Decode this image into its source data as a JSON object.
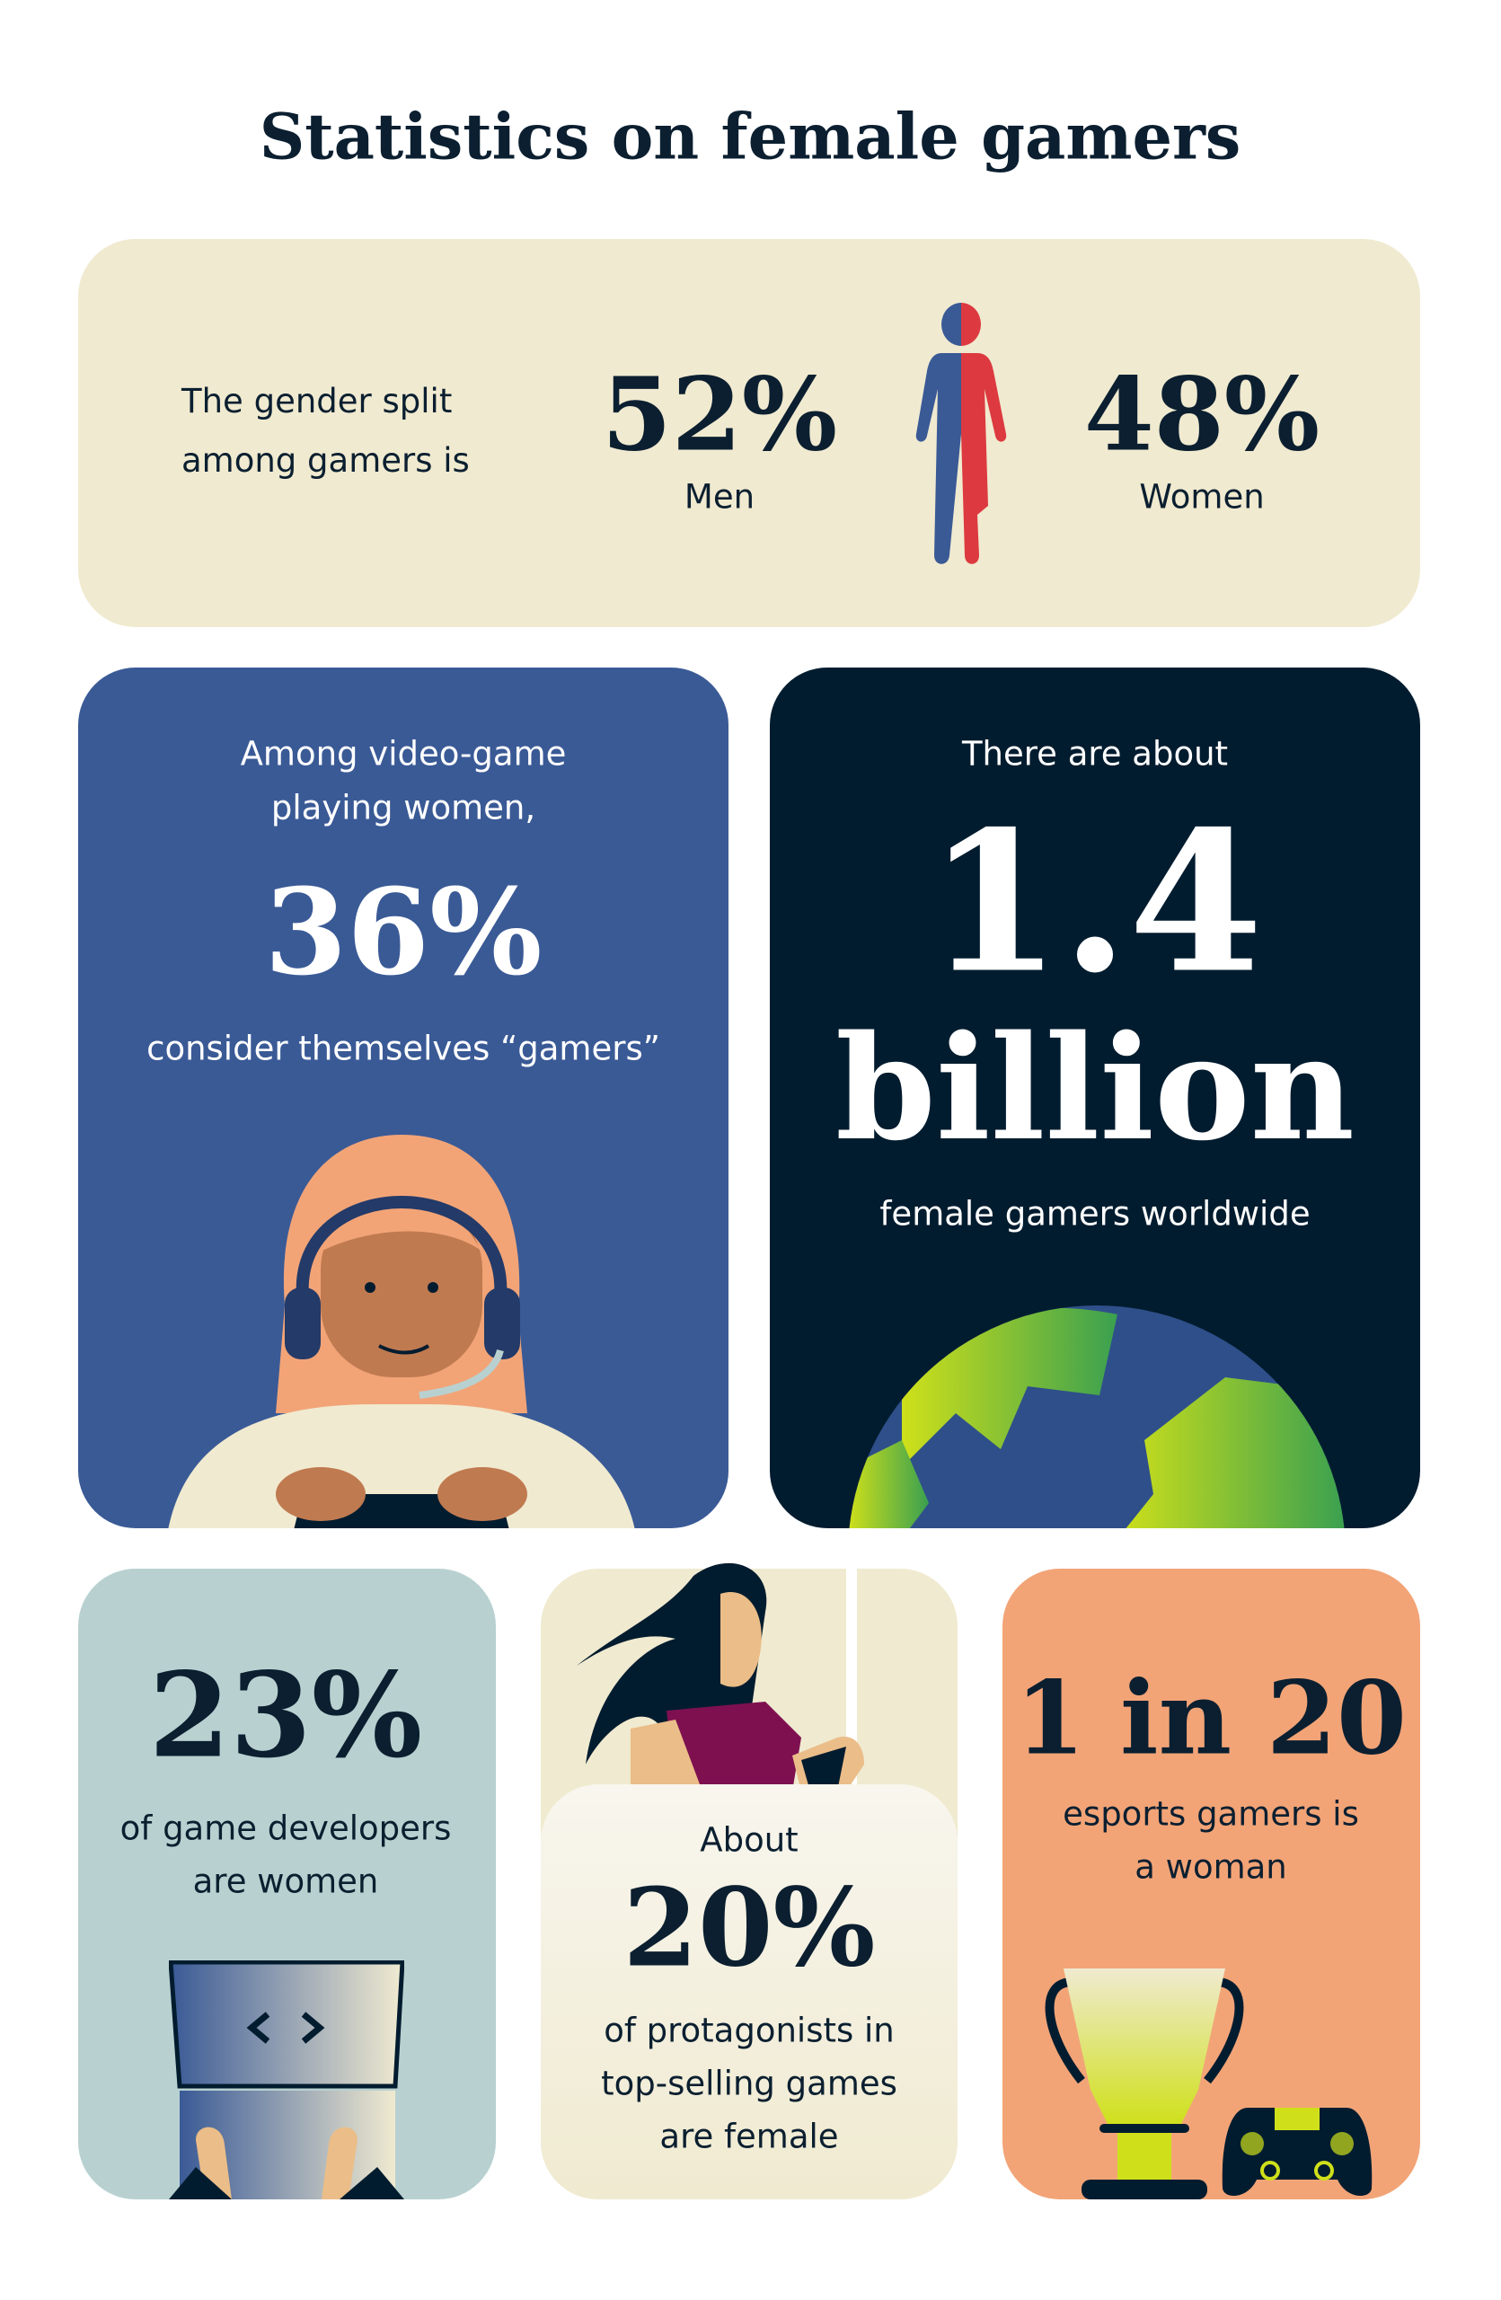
{
  "title": "Statistics on female gamers",
  "colors": {
    "beige": "#f0ead0",
    "blue": "#3a5a96",
    "navy": "#021c2f",
    "teal": "#b8d1d0",
    "orange": "#f2a477",
    "cream": "#f7f4e8",
    "men": "#3a5a96",
    "women": "#dc3a40",
    "lime": "#cfe01a"
  },
  "gender": {
    "intro_line1": "The gender split",
    "intro_line2": "among gamers is",
    "men_value": "52%",
    "men_label": "Men",
    "women_value": "48%",
    "women_label": "Women",
    "icon": "person-split-icon"
  },
  "self_id": {
    "line1": "Among video-game",
    "line2": "playing women,",
    "value": "36%",
    "line3": "consider themselves “gamers”",
    "icon": "woman-headset-gamer-icon"
  },
  "worldwide": {
    "line1": "There are about",
    "value": "1.4",
    "unit": "billion",
    "line2": "female gamers worldwide",
    "icon": "globe-icon"
  },
  "developers": {
    "value": "23%",
    "line1": "of game developers",
    "line2": "are women",
    "icon": "laptop-code-icon"
  },
  "protagonists": {
    "prefix": "About",
    "value": "20%",
    "line1": "of protagonists in",
    "line2": "top-selling games",
    "line3": "are female",
    "icon": "female-warrior-icon"
  },
  "esports": {
    "value": "1 in 20",
    "line1": "esports gamers is",
    "line2": "a woman",
    "icons": [
      "trophy-icon",
      "gamepad-icon"
    ]
  }
}
